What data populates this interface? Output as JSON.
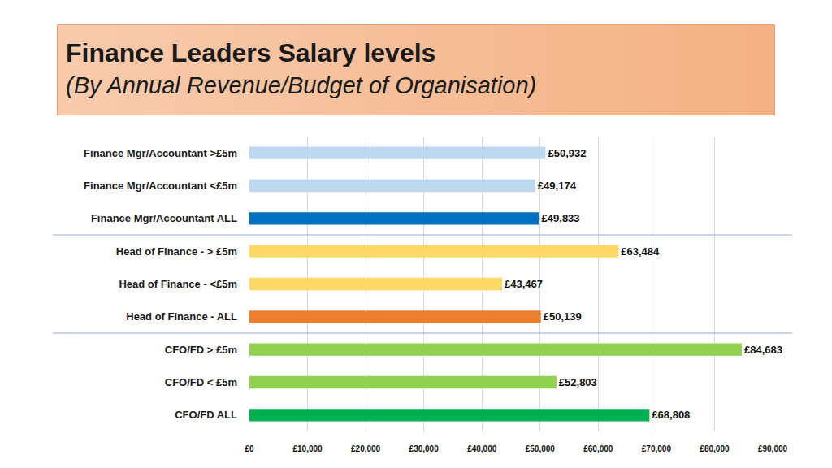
{
  "chart_data": {
    "type": "bar",
    "orientation": "horizontal",
    "title": "Finance Leaders Salary levels",
    "subtitle": "(By Annual Revenue/Budget of Organisation)",
    "categories": [
      "Finance Mgr/Accountant >£5m",
      "Finance Mgr/Accountant <£5m",
      "Finance Mgr/Accountant ALL",
      "Head of Finance - > £5m",
      "Head of Finance - <£5m",
      "Head of Finance - ALL",
      "CFO/FD > £5m",
      "CFO/FD < £5m",
      "CFO/FD ALL"
    ],
    "values": [
      50932,
      49174,
      49833,
      63484,
      43467,
      50139,
      84683,
      52803,
      68808
    ],
    "value_labels": [
      "£50,932",
      "£49,174",
      "£49,833",
      "£63,484",
      "£43,467",
      "£50,139",
      "£84,683",
      "£52,803",
      "£68,808"
    ],
    "colors": [
      "#BDD7EE",
      "#BDD7EE",
      "#0070C0",
      "#FFD966",
      "#FFD966",
      "#ED7D31",
      "#92D050",
      "#92D050",
      "#00B050"
    ],
    "xlim": [
      0,
      90000
    ],
    "xticks": [
      {
        "value": 0,
        "label": "£0"
      },
      {
        "value": 10000,
        "label": "£10,000"
      },
      {
        "value": 20000,
        "label": "£20,000"
      },
      {
        "value": 30000,
        "label": "£30,000"
      },
      {
        "value": 40000,
        "label": "£40,000"
      },
      {
        "value": 50000,
        "label": "£50,000"
      },
      {
        "value": 60000,
        "label": "£60,000"
      },
      {
        "value": 70000,
        "label": "£70,000"
      },
      {
        "value": 80000,
        "label": "£80,000"
      },
      {
        "value": 90000,
        "label": "£90,000"
      }
    ],
    "grid": true,
    "data_labels": true
  }
}
